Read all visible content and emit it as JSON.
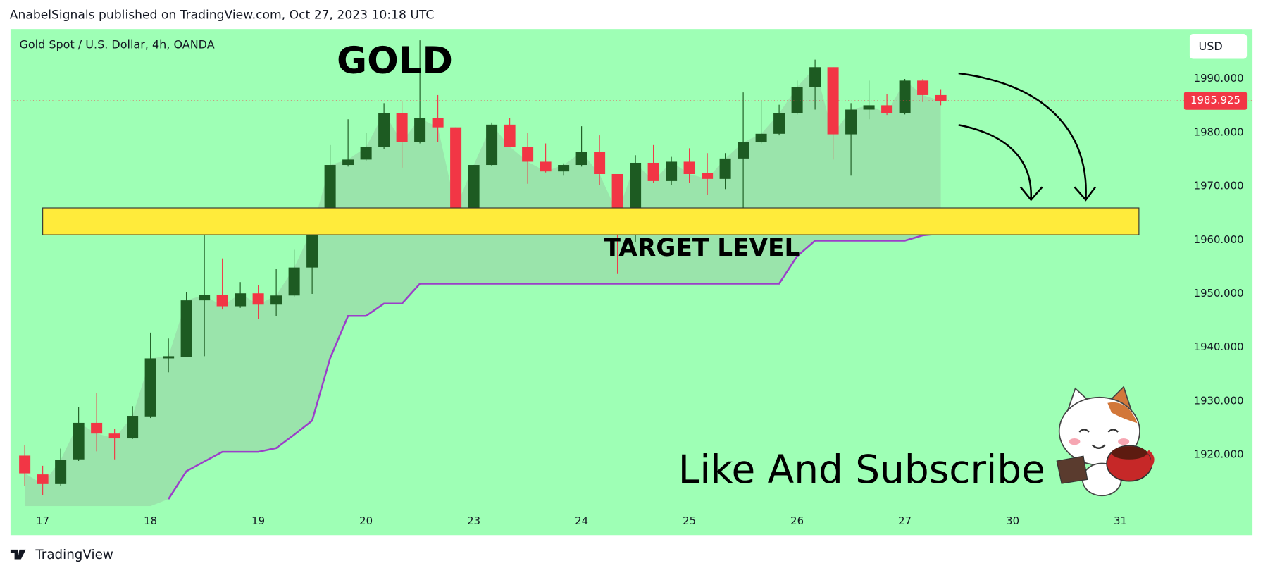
{
  "header": "AnabelSignals published on TradingView.com, Oct 27, 2023 10:18 UTC",
  "footer": "TradingView",
  "chart_data": {
    "type": "candlestick",
    "title": "Gold Spot / U.S. Dollar, 4h, OANDA",
    "annotations": {
      "gold": "GOLD",
      "target": "TARGET LEVEL",
      "subscribe": "Like And Subscribe"
    },
    "currency": "USD",
    "last_price": 1985.925,
    "zone": [
      1966,
      1961
    ],
    "up_color": "#1d5b22",
    "down_color": "#f23645",
    "line_color": "#9b3fc9",
    "zone_color": "#ffeb3b",
    "categories": [
      null,
      "17",
      null,
      null,
      null,
      null,
      null,
      "18",
      null,
      null,
      null,
      null,
      null,
      "19",
      null,
      null,
      null,
      null,
      null,
      "20",
      null,
      null,
      null,
      null,
      null,
      "23",
      null,
      null,
      null,
      null,
      null,
      "24",
      null,
      null,
      null,
      null,
      null,
      "25",
      null,
      null,
      null,
      null,
      null,
      "26",
      null,
      null,
      null,
      null,
      null,
      "27",
      null,
      null,
      null,
      null,
      null,
      "30",
      null,
      null,
      null,
      null,
      null,
      "31",
      null,
      null,
      null
    ],
    "open": [
      1919.9,
      1916.4,
      1914.6,
      1919.2,
      1926.0,
      1924.0,
      1923.1,
      1927.2,
      1938.0,
      1938.3,
      1948.8,
      1949.8,
      1947.7,
      1950.1,
      1948.0,
      1949.7,
      1954.9,
      1962.0,
      1974.0,
      1975.0,
      1977.3,
      1983.7,
      1978.3,
      1982.7,
      1981.0,
      1966.0,
      1974.0,
      1981.5,
      1977.4,
      1974.6,
      1972.8,
      1974.0,
      1976.4,
      1972.3,
      1965.0,
      1974.4,
      1971.0,
      1974.6,
      1972.5,
      1971.4,
      1975.2,
      1978.2,
      1979.8,
      1983.6,
      1988.5,
      1992.2,
      1979.7,
      1984.3,
      1985.1,
      1983.6,
      1989.7,
      1987.0,
      null,
      null,
      null,
      null,
      null,
      null,
      null,
      null,
      null,
      null,
      null,
      null,
      null
    ],
    "high": [
      1921.9,
      1918.0,
      1921.2,
      1929.0,
      1931.5,
      1924.9,
      1929.1,
      1942.8,
      1941.7,
      1950.3,
      1962.4,
      1956.6,
      1952.2,
      1951.6,
      1954.6,
      1958.2,
      1962.7,
      1977.7,
      1982.5,
      1980.0,
      1985.5,
      1985.8,
      1997.2,
      1987.0,
      1981.0,
      1974.0,
      1981.9,
      1982.7,
      1980.0,
      1978.0,
      1974.3,
      1981.2,
      1979.5,
      1972.3,
      1975.8,
      1977.7,
      1975.5,
      1977.1,
      1976.2,
      1976.2,
      1987.5,
      1986.0,
      1985.2,
      1989.7,
      1993.6,
      1992.2,
      1985.5,
      1989.7,
      1987.2,
      1990.0,
      1990.0,
      1988.1,
      null,
      null,
      null,
      null,
      null,
      null,
      null,
      null,
      null,
      null,
      null,
      null,
      null
    ],
    "low": [
      1914.3,
      1912.5,
      1914.3,
      1918.9,
      1920.7,
      1919.2,
      1923.0,
      1926.9,
      1935.4,
      1938.3,
      1938.4,
      1947.1,
      1947.4,
      1945.3,
      1945.8,
      1949.5,
      1950.0,
      1961.2,
      1973.7,
      1974.7,
      1977.0,
      1973.5,
      1978.0,
      1978.3,
      1964.5,
      1964.5,
      1973.8,
      1977.3,
      1970.5,
      1972.6,
      1972.0,
      1973.7,
      1970.2,
      1953.7,
      1959.7,
      1970.7,
      1970.2,
      1970.7,
      1968.4,
      1969.5,
      1963.0,
      1978.0,
      1979.5,
      1983.4,
      1984.3,
      1975.0,
      1972.0,
      1982.5,
      1983.3,
      1983.4,
      1985.7,
      1985.1,
      null,
      null,
      null,
      null,
      null,
      null,
      null,
      null,
      null,
      null,
      null,
      null,
      null
    ],
    "close": [
      1916.6,
      1914.6,
      1919.1,
      1926.0,
      1924.0,
      1923.1,
      1927.3,
      1938.0,
      1938.4,
      1948.8,
      1949.8,
      1947.7,
      1950.1,
      1948.0,
      1949.7,
      1954.9,
      1962.0,
      1974.0,
      1975.0,
      1977.3,
      1983.7,
      1978.3,
      1982.7,
      1981.0,
      1966.0,
      1974.0,
      1981.5,
      1977.4,
      1974.6,
      1972.8,
      1974.0,
      1976.4,
      1972.3,
      1965.0,
      1974.4,
      1971.0,
      1974.6,
      1972.3,
      1971.4,
      1975.2,
      1978.2,
      1979.8,
      1983.6,
      1988.5,
      1992.2,
      1979.7,
      1984.3,
      1985.1,
      1983.6,
      1989.7,
      1987.0,
      1985.925,
      null,
      null,
      null,
      null,
      null,
      null,
      null,
      null,
      null,
      null,
      null,
      null,
      null
    ],
    "trend_line": [
      null,
      null,
      null,
      null,
      null,
      null,
      null,
      null,
      1911.8,
      1917.0,
      1918.8,
      1920.6,
      1920.6,
      1920.6,
      1921.3,
      1923.8,
      1926.4,
      1938.0,
      1945.9,
      1945.9,
      1948.2,
      1948.2,
      1951.9,
      1951.9,
      1951.9,
      1951.9,
      1951.9,
      1951.9,
      1951.9,
      1951.9,
      1951.9,
      1951.9,
      1951.9,
      1951.9,
      1951.9,
      1951.9,
      1951.9,
      1951.9,
      1951.9,
      1951.9,
      1951.9,
      1951.9,
      1951.9,
      1957.0,
      1959.9,
      1959.9,
      1959.9,
      1959.9,
      1959.9,
      1959.9,
      1960.9,
      1961.2,
      null,
      null,
      null,
      null,
      null,
      null,
      null,
      null,
      null,
      null,
      null,
      null,
      null
    ],
    "ylim": [
      1910.5,
      1999.3
    ],
    "yticks": [
      {
        "value": 1920,
        "label": "1920.000"
      },
      {
        "value": 1930,
        "label": "1930.000"
      },
      {
        "value": 1940,
        "label": "1940.000"
      },
      {
        "value": 1950,
        "label": "1950.000"
      },
      {
        "value": 1960,
        "label": "1960.000"
      },
      {
        "value": 1970,
        "label": "1970.000"
      },
      {
        "value": 1980,
        "label": "1980.000"
      },
      {
        "value": 1990,
        "label": "1990.000"
      }
    ],
    "grid": false
  }
}
